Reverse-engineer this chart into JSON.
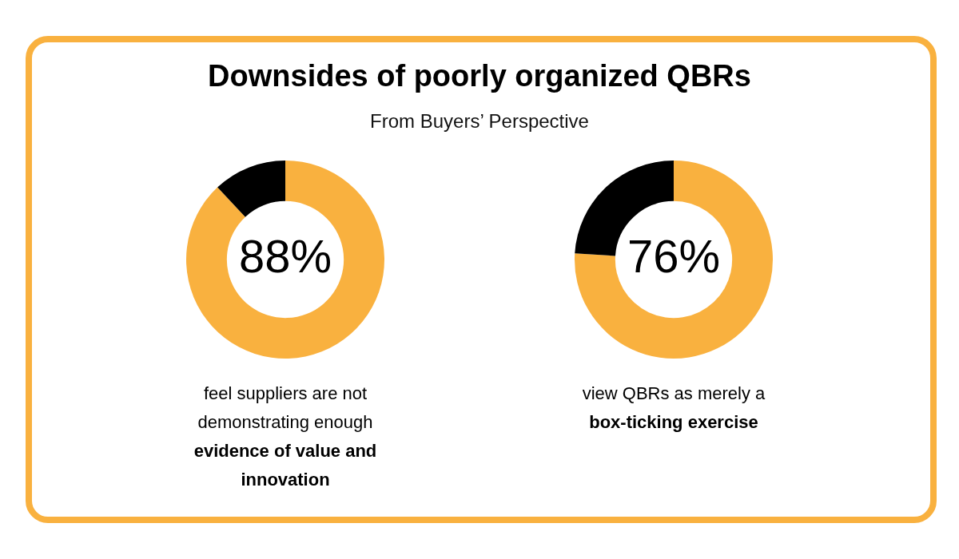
{
  "chart_data": [
    {
      "type": "donut",
      "title": "Downsides of poorly organized QBRs",
      "subtitle": "From Buyers’ Perspective",
      "categories": [
        null,
        null
      ],
      "values": [
        88,
        12
      ],
      "colors": [
        "#f9b13f",
        "#000000"
      ],
      "value_labels": [
        "88%",
        null
      ],
      "annotations": [
        "feel suppliers are not demonstrating enough",
        "evidence of value and innovation"
      ]
    },
    {
      "type": "donut",
      "categories": [
        null,
        null
      ],
      "values": [
        76,
        24
      ],
      "colors": [
        "#f9b13f",
        "#000000"
      ],
      "value_labels": [
        "76%",
        null
      ],
      "annotations": [
        "view QBRs as merely a",
        "box-ticking exercise"
      ]
    }
  ]
}
